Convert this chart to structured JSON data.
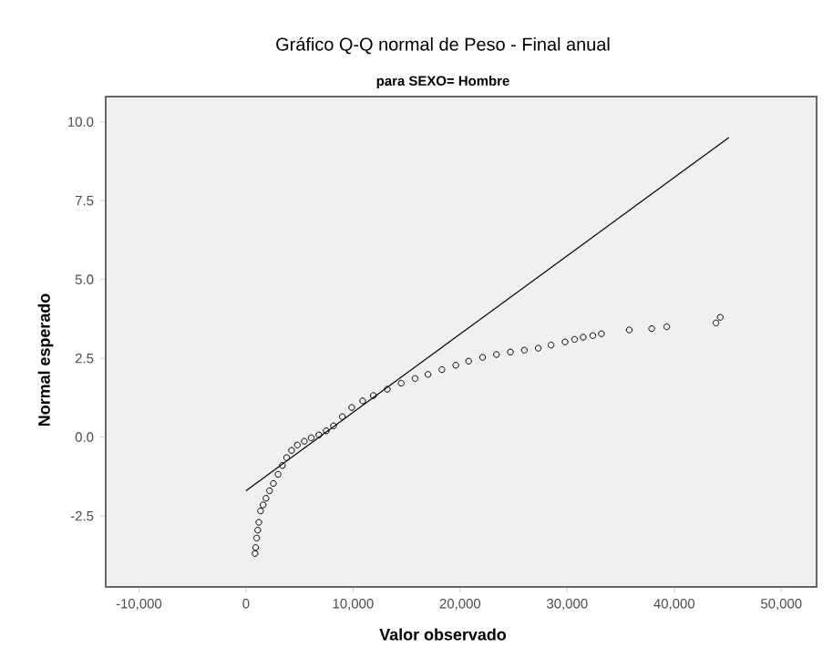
{
  "chart_data": {
    "type": "scatter",
    "title": "Gráfico Q-Q normal de Peso - Final anual",
    "subtitle": "para SEXO= Hombre",
    "xlabel": "Valor observado",
    "ylabel": "Normal esperado",
    "xlim": [
      -13100,
      53300
    ],
    "ylim": [
      -4.75,
      10.8
    ],
    "xticks": [
      {
        "value": -10000,
        "label": "-10,000"
      },
      0,
      {
        "value": 10000,
        "label": "10,000"
      },
      {
        "value": 20000,
        "label": "20,000"
      },
      {
        "value": 30000,
        "label": "30,000"
      },
      {
        "value": 40000,
        "label": "40,000"
      },
      {
        "value": 50000,
        "label": "50,000"
      }
    ],
    "yticks": [
      {
        "value": -2.5,
        "label": "-2.5"
      },
      {
        "value": 0,
        "label": "0.0"
      },
      {
        "value": 2.5,
        "label": "2.5"
      },
      {
        "value": 5,
        "label": "5.0"
      },
      {
        "value": 7.5,
        "label": "7.5"
      },
      {
        "value": 10,
        "label": "10.0"
      }
    ],
    "marker": "circle",
    "series": [
      {
        "color": "#000000",
        "x": [
          850,
          900,
          1000,
          1100,
          1200,
          1360,
          1600,
          1870,
          2200,
          2560,
          3000,
          3400,
          3800,
          4260,
          4800,
          5450,
          6100,
          6810,
          7500,
          8180,
          9000,
          9880,
          10900,
          11900,
          13200,
          14500,
          15800,
          17000,
          18300,
          19600,
          20800,
          22100,
          23400,
          24700,
          26000,
          27300,
          28500,
          29800,
          30700,
          31500,
          32400,
          33200,
          35800,
          37900,
          39300,
          43900,
          44300
        ],
        "values": [
          -3.69,
          -3.5,
          -3.2,
          -2.95,
          -2.7,
          -2.34,
          -2.15,
          -1.94,
          -1.7,
          -1.47,
          -1.18,
          -0.9,
          -0.65,
          -0.42,
          -0.25,
          -0.13,
          -0.02,
          0.07,
          0.2,
          0.36,
          0.65,
          0.94,
          1.15,
          1.32,
          1.52,
          1.71,
          1.86,
          1.99,
          2.14,
          2.28,
          2.41,
          2.53,
          2.62,
          2.7,
          2.76,
          2.82,
          2.92,
          3.02,
          3.1,
          3.17,
          3.22,
          3.28,
          3.4,
          3.44,
          3.5,
          3.62,
          3.8
        ]
      },
      {
        "type": "line",
        "color": "#000000",
        "marker": "none",
        "x": [
          0,
          45100
        ],
        "values": [
          -1.7,
          9.5
        ]
      }
    ]
  }
}
